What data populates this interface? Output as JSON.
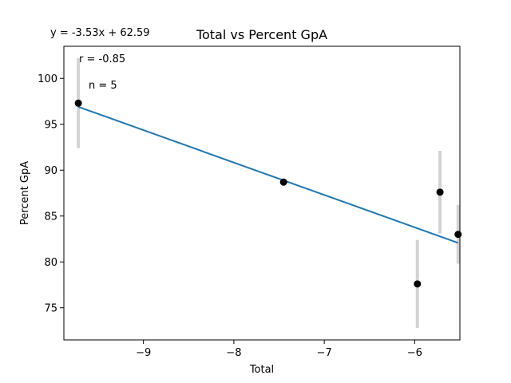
{
  "stats": {
    "equation": "y = -3.53x + 62.59",
    "r": "r = -0.85",
    "n": "n = 5"
  },
  "chart_data": {
    "type": "scatter",
    "title": "Total vs Percent GpA",
    "xlabel": "Total",
    "ylabel": "Percent GpA",
    "xlim": [
      -9.88,
      -5.5
    ],
    "ylim": [
      71.5,
      103.5
    ],
    "xticks": [
      -9,
      -8,
      -7,
      -6
    ],
    "xtick_labels": [
      "−9",
      "−8",
      "−7",
      "−6"
    ],
    "yticks": [
      75,
      80,
      85,
      90,
      95,
      100
    ],
    "ytick_labels": [
      "75",
      "80",
      "85",
      "90",
      "95",
      "100"
    ],
    "grid": false,
    "points": [
      {
        "x": -9.72,
        "y": 97.3,
        "err": 4.9
      },
      {
        "x": -7.45,
        "y": 88.7,
        "err": 0.4
      },
      {
        "x": -5.97,
        "y": 77.6,
        "err": 4.8
      },
      {
        "x": -5.72,
        "y": 87.6,
        "err": 4.5
      },
      {
        "x": -5.52,
        "y": 83.0,
        "err": 3.2
      }
    ],
    "fit": {
      "slope": -3.53,
      "intercept": 62.59
    },
    "colors": {
      "points": "#000000",
      "errorbars": "#d3d3d3",
      "fit": "#1f77b4"
    }
  }
}
